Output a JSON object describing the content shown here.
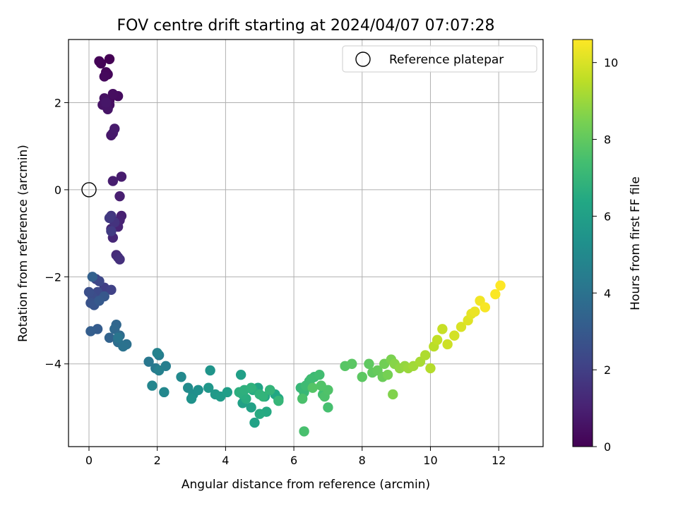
{
  "chart_data": {
    "type": "scatter",
    "title": "FOV centre drift starting at 2024/04/07 07:07:28",
    "xlabel": "Angular distance from reference (arcmin)",
    "ylabel": "Rotation from reference (arcmin)",
    "xlim": [
      -0.6,
      13.3
    ],
    "ylim": [
      -5.9,
      3.45
    ],
    "xticks": [
      0,
      2,
      4,
      6,
      8,
      10,
      12
    ],
    "yticks": [
      -4,
      -2,
      0,
      2
    ],
    "grid": true,
    "legend": {
      "location": "top-right",
      "entries": [
        {
          "label": "Reference platepar",
          "marker": "open-circle"
        }
      ]
    },
    "reference_point": {
      "x": 0,
      "y": 0
    },
    "colorbar": {
      "label": "Hours from first FF file",
      "colormap": "viridis",
      "range": [
        0,
        10.6
      ],
      "ticks": [
        0,
        2,
        4,
        6,
        8,
        10
      ]
    },
    "series": [
      {
        "c": [
          0.0,
          0.05,
          0.1,
          0.15,
          0.2,
          0.25,
          0.3,
          0.35,
          0.4,
          0.45,
          0.5,
          0.55,
          0.6,
          0.65,
          0.7,
          0.75,
          0.8,
          0.85,
          0.9,
          0.95,
          1.0,
          1.05,
          1.1,
          1.15,
          1.2,
          1.3,
          1.4,
          1.5,
          1.6,
          1.7,
          1.8,
          1.9,
          2.0,
          2.1,
          2.2,
          2.3,
          2.4,
          2.5,
          2.6,
          2.7,
          2.8,
          2.9,
          3.0,
          3.1,
          3.2,
          3.3,
          3.4,
          3.5,
          3.6,
          3.7,
          3.8,
          3.9,
          4.0,
          4.1,
          4.2,
          4.3,
          4.4,
          4.5,
          4.6,
          4.7,
          4.8,
          4.9,
          5.0,
          5.1,
          5.2,
          5.3,
          5.4,
          5.5,
          5.6,
          5.7,
          5.8,
          5.9,
          6.0,
          6.05,
          6.1,
          6.15,
          6.2,
          6.25,
          6.3,
          6.35,
          6.4,
          6.45,
          6.5,
          6.55,
          6.6,
          6.65,
          6.7,
          6.75,
          6.8,
          6.85,
          6.9,
          6.95,
          7.0,
          7.05,
          7.1,
          7.15,
          7.2,
          7.25,
          7.3,
          7.35,
          7.4,
          7.45,
          7.5,
          7.55,
          7.6,
          7.65,
          7.7,
          7.75,
          7.8,
          7.85,
          7.9,
          7.95,
          8.0,
          8.1,
          8.2,
          8.3,
          8.4,
          8.5,
          8.6,
          8.7,
          8.8,
          8.9,
          9.0,
          9.1,
          9.2,
          9.3,
          9.4,
          9.5,
          9.6,
          9.7,
          9.8,
          9.9,
          10.0,
          10.1,
          10.2,
          10.3,
          10.4,
          10.5,
          10.55,
          10.6
        ],
        "x": [
          0.6,
          0.35,
          0.3,
          0.55,
          0.5,
          0.45,
          0.6,
          0.85,
          0.7,
          0.6,
          0.45,
          0.4,
          0.55,
          0.5,
          0.65,
          0.7,
          0.75,
          0.95,
          0.7,
          0.9,
          0.95,
          0.9,
          0.85,
          0.65,
          0.7,
          0.8,
          0.85,
          0.9,
          0.75,
          0.65,
          0.6,
          0.65,
          0.45,
          0.65,
          0.2,
          0.3,
          0.25,
          0.1,
          0.0,
          0.05,
          0.15,
          0.45,
          0.3,
          0.25,
          0.05,
          0.1,
          0.6,
          0.8,
          0.75,
          0.9,
          0.85,
          1.1,
          1.0,
          0.85,
          1.75,
          1.95,
          2.05,
          2.25,
          2.05,
          2.0,
          1.85,
          2.2,
          2.7,
          2.9,
          3.05,
          3.2,
          3.0,
          3.55,
          3.5,
          3.7,
          3.85,
          4.05,
          4.45,
          4.5,
          4.75,
          4.85,
          4.95,
          5.15,
          5.3,
          5.45,
          5.55,
          5.2,
          5.0,
          4.8,
          4.6,
          4.5,
          4.4,
          4.55,
          4.75,
          5.0,
          5.1,
          5.3,
          5.55,
          6.2,
          6.3,
          6.45,
          6.6,
          6.35,
          6.5,
          6.75,
          6.85,
          7.0,
          6.3,
          6.25,
          6.9,
          7.0,
          6.8,
          6.55,
          7.5,
          7.7,
          8.0,
          8.2,
          8.3,
          8.45,
          8.6,
          8.65,
          8.75,
          8.85,
          8.9,
          8.95,
          9.1,
          9.25,
          9.35,
          9.5,
          9.7,
          9.85,
          10.0,
          10.1,
          10.2,
          10.35,
          10.5,
          10.7,
          10.9,
          11.1,
          11.2,
          11.3,
          11.45,
          11.6,
          11.9,
          12.05
        ],
        "y": [
          3.0,
          2.9,
          2.95,
          2.65,
          2.7,
          2.6,
          2.05,
          2.15,
          2.2,
          1.95,
          2.1,
          1.95,
          1.85,
          2.0,
          1.25,
          1.3,
          1.4,
          0.3,
          0.2,
          -0.15,
          -0.6,
          -0.7,
          -0.85,
          -0.9,
          -1.1,
          -1.5,
          -1.55,
          -1.6,
          -0.75,
          -0.6,
          -0.65,
          -0.95,
          -2.25,
          -2.3,
          -2.05,
          -2.1,
          -2.35,
          -2.45,
          -2.35,
          -2.6,
          -2.65,
          -2.45,
          -2.55,
          -3.2,
          -3.25,
          -2.0,
          -3.4,
          -3.1,
          -3.2,
          -3.35,
          -3.5,
          -3.55,
          -3.6,
          -3.4,
          -3.95,
          -4.1,
          -3.8,
          -4.05,
          -4.15,
          -3.75,
          -4.5,
          -4.65,
          -4.3,
          -4.55,
          -4.7,
          -4.6,
          -4.8,
          -4.15,
          -4.55,
          -4.7,
          -4.75,
          -4.65,
          -4.25,
          -4.9,
          -5.0,
          -5.35,
          -4.55,
          -4.75,
          -4.6,
          -4.7,
          -4.8,
          -5.1,
          -5.15,
          -4.6,
          -4.8,
          -4.7,
          -4.65,
          -4.6,
          -4.55,
          -4.7,
          -4.75,
          -4.6,
          -4.85,
          -4.55,
          -4.65,
          -4.4,
          -4.3,
          -4.5,
          -4.35,
          -4.25,
          -4.7,
          -5.0,
          -5.55,
          -4.8,
          -4.75,
          -4.6,
          -4.5,
          -4.55,
          -4.05,
          -4.0,
          -4.3,
          -4.0,
          -4.2,
          -4.15,
          -4.3,
          -4.0,
          -4.25,
          -3.9,
          -4.7,
          -4.0,
          -4.1,
          -4.05,
          -4.1,
          -4.05,
          -3.95,
          -3.8,
          -4.1,
          -3.6,
          -3.45,
          -3.2,
          -3.55,
          -3.35,
          -3.15,
          -3.0,
          -2.85,
          -2.8,
          -2.55,
          -2.7,
          -2.4,
          -2.2
        ]
      }
    ]
  }
}
